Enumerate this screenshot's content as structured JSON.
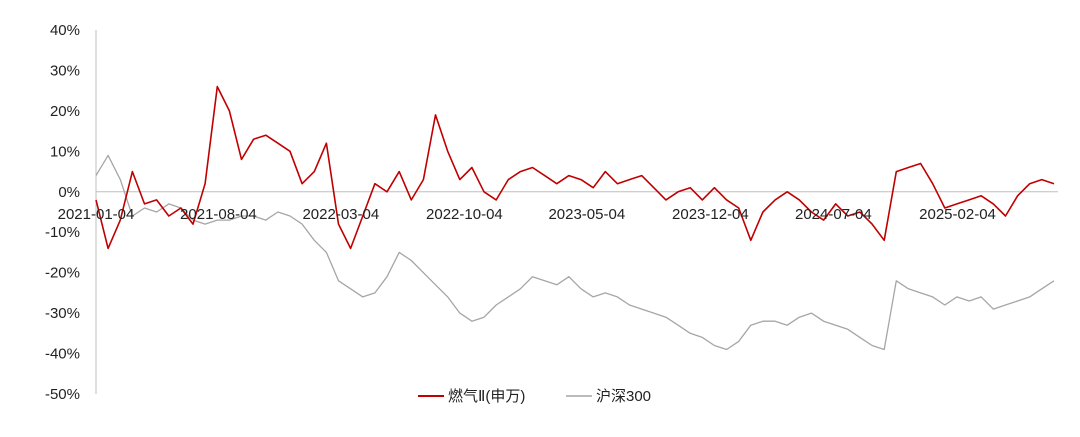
{
  "chart_data": {
    "type": "line",
    "title": "",
    "xlabel": "",
    "ylabel": "",
    "ylim": [
      -0.5,
      0.4
    ],
    "yticks": [
      0.4,
      0.3,
      0.2,
      0.1,
      0.0,
      -0.1,
      -0.2,
      -0.3,
      -0.4,
      -0.5
    ],
    "ytick_labels": [
      "40%",
      "30%",
      "20%",
      "10%",
      "0%",
      "-10%",
      "-20%",
      "-30%",
      "-40%",
      "-50%"
    ],
    "xlim": [
      "2021-01-04",
      "2025-07-28"
    ],
    "xtick_labels": [
      "2021-01-04",
      "2021-08-04",
      "2022-03-04",
      "2022-10-04",
      "2023-05-04",
      "2023-12-04",
      "2024-07-04",
      "2025-02-04"
    ],
    "grid": false,
    "legend": "bottom",
    "colors": {
      "series1": "#c00000",
      "series2": "#a6a6a6",
      "axis": "#bfbfbf"
    },
    "series": [
      {
        "name": "燃气Ⅱ(申万)",
        "x": [
          "2021-01-04",
          "2021-01-25",
          "2021-02-15",
          "2021-03-08",
          "2021-03-29",
          "2021-04-19",
          "2021-05-10",
          "2021-05-31",
          "2021-06-21",
          "2021-07-12",
          "2021-08-02",
          "2021-08-23",
          "2021-09-13",
          "2021-10-04",
          "2021-10-25",
          "2021-11-15",
          "2021-12-06",
          "2021-12-27",
          "2022-01-17",
          "2022-02-07",
          "2022-02-28",
          "2022-03-21",
          "2022-04-11",
          "2022-05-02",
          "2022-05-23",
          "2022-06-13",
          "2022-07-04",
          "2022-07-25",
          "2022-08-15",
          "2022-09-05",
          "2022-09-26",
          "2022-10-17",
          "2022-11-07",
          "2022-11-28",
          "2022-12-19",
          "2023-01-09",
          "2023-01-30",
          "2023-02-20",
          "2023-03-13",
          "2023-04-03",
          "2023-04-24",
          "2023-05-15",
          "2023-06-05",
          "2023-06-26",
          "2023-07-17",
          "2023-08-07",
          "2023-08-28",
          "2023-09-18",
          "2023-10-09",
          "2023-10-30",
          "2023-11-20",
          "2023-12-11",
          "2024-01-01",
          "2024-01-22",
          "2024-02-12",
          "2024-03-04",
          "2024-03-25",
          "2024-04-15",
          "2024-05-06",
          "2024-05-27",
          "2024-06-17",
          "2024-07-08",
          "2024-07-29",
          "2024-08-19",
          "2024-09-09",
          "2024-09-30",
          "2024-10-21",
          "2024-11-11",
          "2024-12-02",
          "2024-12-23",
          "2025-01-13",
          "2025-02-03",
          "2025-02-24",
          "2025-03-17",
          "2025-04-07",
          "2025-04-28",
          "2025-05-19",
          "2025-06-09",
          "2025-06-30",
          "2025-07-21"
        ],
        "values": [
          -0.02,
          -0.14,
          -0.07,
          0.05,
          -0.03,
          -0.02,
          -0.06,
          -0.04,
          -0.08,
          0.02,
          0.26,
          0.2,
          0.08,
          0.13,
          0.14,
          0.12,
          0.1,
          0.02,
          0.05,
          0.12,
          -0.08,
          -0.14,
          -0.06,
          0.02,
          0.0,
          0.05,
          -0.02,
          0.03,
          0.19,
          0.1,
          0.03,
          0.06,
          0.0,
          -0.02,
          0.03,
          0.05,
          0.06,
          0.04,
          0.02,
          0.04,
          0.03,
          0.01,
          0.05,
          0.02,
          0.03,
          0.04,
          0.01,
          -0.02,
          0.0,
          0.01,
          -0.02,
          0.01,
          -0.02,
          -0.04,
          -0.12,
          -0.05,
          -0.02,
          0.0,
          -0.02,
          -0.05,
          -0.07,
          -0.03,
          -0.06,
          -0.05,
          -0.08,
          -0.12,
          0.05,
          0.06,
          0.07,
          0.02,
          -0.04,
          -0.03,
          -0.02,
          -0.01,
          -0.03,
          -0.06,
          -0.01,
          0.02,
          0.03,
          0.02
        ]
      },
      {
        "name": "沪深300",
        "x": [
          "2021-01-04",
          "2021-01-25",
          "2021-02-15",
          "2021-03-08",
          "2021-03-29",
          "2021-04-19",
          "2021-05-10",
          "2021-05-31",
          "2021-06-21",
          "2021-07-12",
          "2021-08-02",
          "2021-08-23",
          "2021-09-13",
          "2021-10-04",
          "2021-10-25",
          "2021-11-15",
          "2021-12-06",
          "2021-12-27",
          "2022-01-17",
          "2022-02-07",
          "2022-02-28",
          "2022-03-21",
          "2022-04-11",
          "2022-05-02",
          "2022-05-23",
          "2022-06-13",
          "2022-07-04",
          "2022-07-25",
          "2022-08-15",
          "2022-09-05",
          "2022-09-26",
          "2022-10-17",
          "2022-11-07",
          "2022-11-28",
          "2022-12-19",
          "2023-01-09",
          "2023-01-30",
          "2023-02-20",
          "2023-03-13",
          "2023-04-03",
          "2023-04-24",
          "2023-05-15",
          "2023-06-05",
          "2023-06-26",
          "2023-07-17",
          "2023-08-07",
          "2023-08-28",
          "2023-09-18",
          "2023-10-09",
          "2023-10-30",
          "2023-11-20",
          "2023-12-11",
          "2024-01-01",
          "2024-01-22",
          "2024-02-12",
          "2024-03-04",
          "2024-03-25",
          "2024-04-15",
          "2024-05-06",
          "2024-05-27",
          "2024-06-17",
          "2024-07-08",
          "2024-07-29",
          "2024-08-19",
          "2024-09-09",
          "2024-09-30",
          "2024-10-21",
          "2024-11-11",
          "2024-12-02",
          "2024-12-23",
          "2025-01-13",
          "2025-02-03",
          "2025-02-24",
          "2025-03-17",
          "2025-04-07",
          "2025-04-28",
          "2025-05-19",
          "2025-06-09",
          "2025-06-30",
          "2025-07-21"
        ],
        "values": [
          0.04,
          0.09,
          0.03,
          -0.06,
          -0.04,
          -0.05,
          -0.03,
          -0.04,
          -0.07,
          -0.08,
          -0.07,
          -0.07,
          -0.06,
          -0.06,
          -0.07,
          -0.05,
          -0.06,
          -0.08,
          -0.12,
          -0.15,
          -0.22,
          -0.24,
          -0.26,
          -0.25,
          -0.21,
          -0.15,
          -0.17,
          -0.2,
          -0.23,
          -0.26,
          -0.3,
          -0.32,
          -0.31,
          -0.28,
          -0.26,
          -0.24,
          -0.21,
          -0.22,
          -0.23,
          -0.21,
          -0.24,
          -0.26,
          -0.25,
          -0.26,
          -0.28,
          -0.29,
          -0.3,
          -0.31,
          -0.33,
          -0.35,
          -0.36,
          -0.38,
          -0.39,
          -0.37,
          -0.33,
          -0.32,
          -0.32,
          -0.33,
          -0.31,
          -0.3,
          -0.32,
          -0.33,
          -0.34,
          -0.36,
          -0.38,
          -0.39,
          -0.22,
          -0.24,
          -0.25,
          -0.26,
          -0.28,
          -0.26,
          -0.27,
          -0.26,
          -0.29,
          -0.28,
          -0.27,
          -0.26,
          -0.24,
          -0.22
        ]
      }
    ]
  }
}
